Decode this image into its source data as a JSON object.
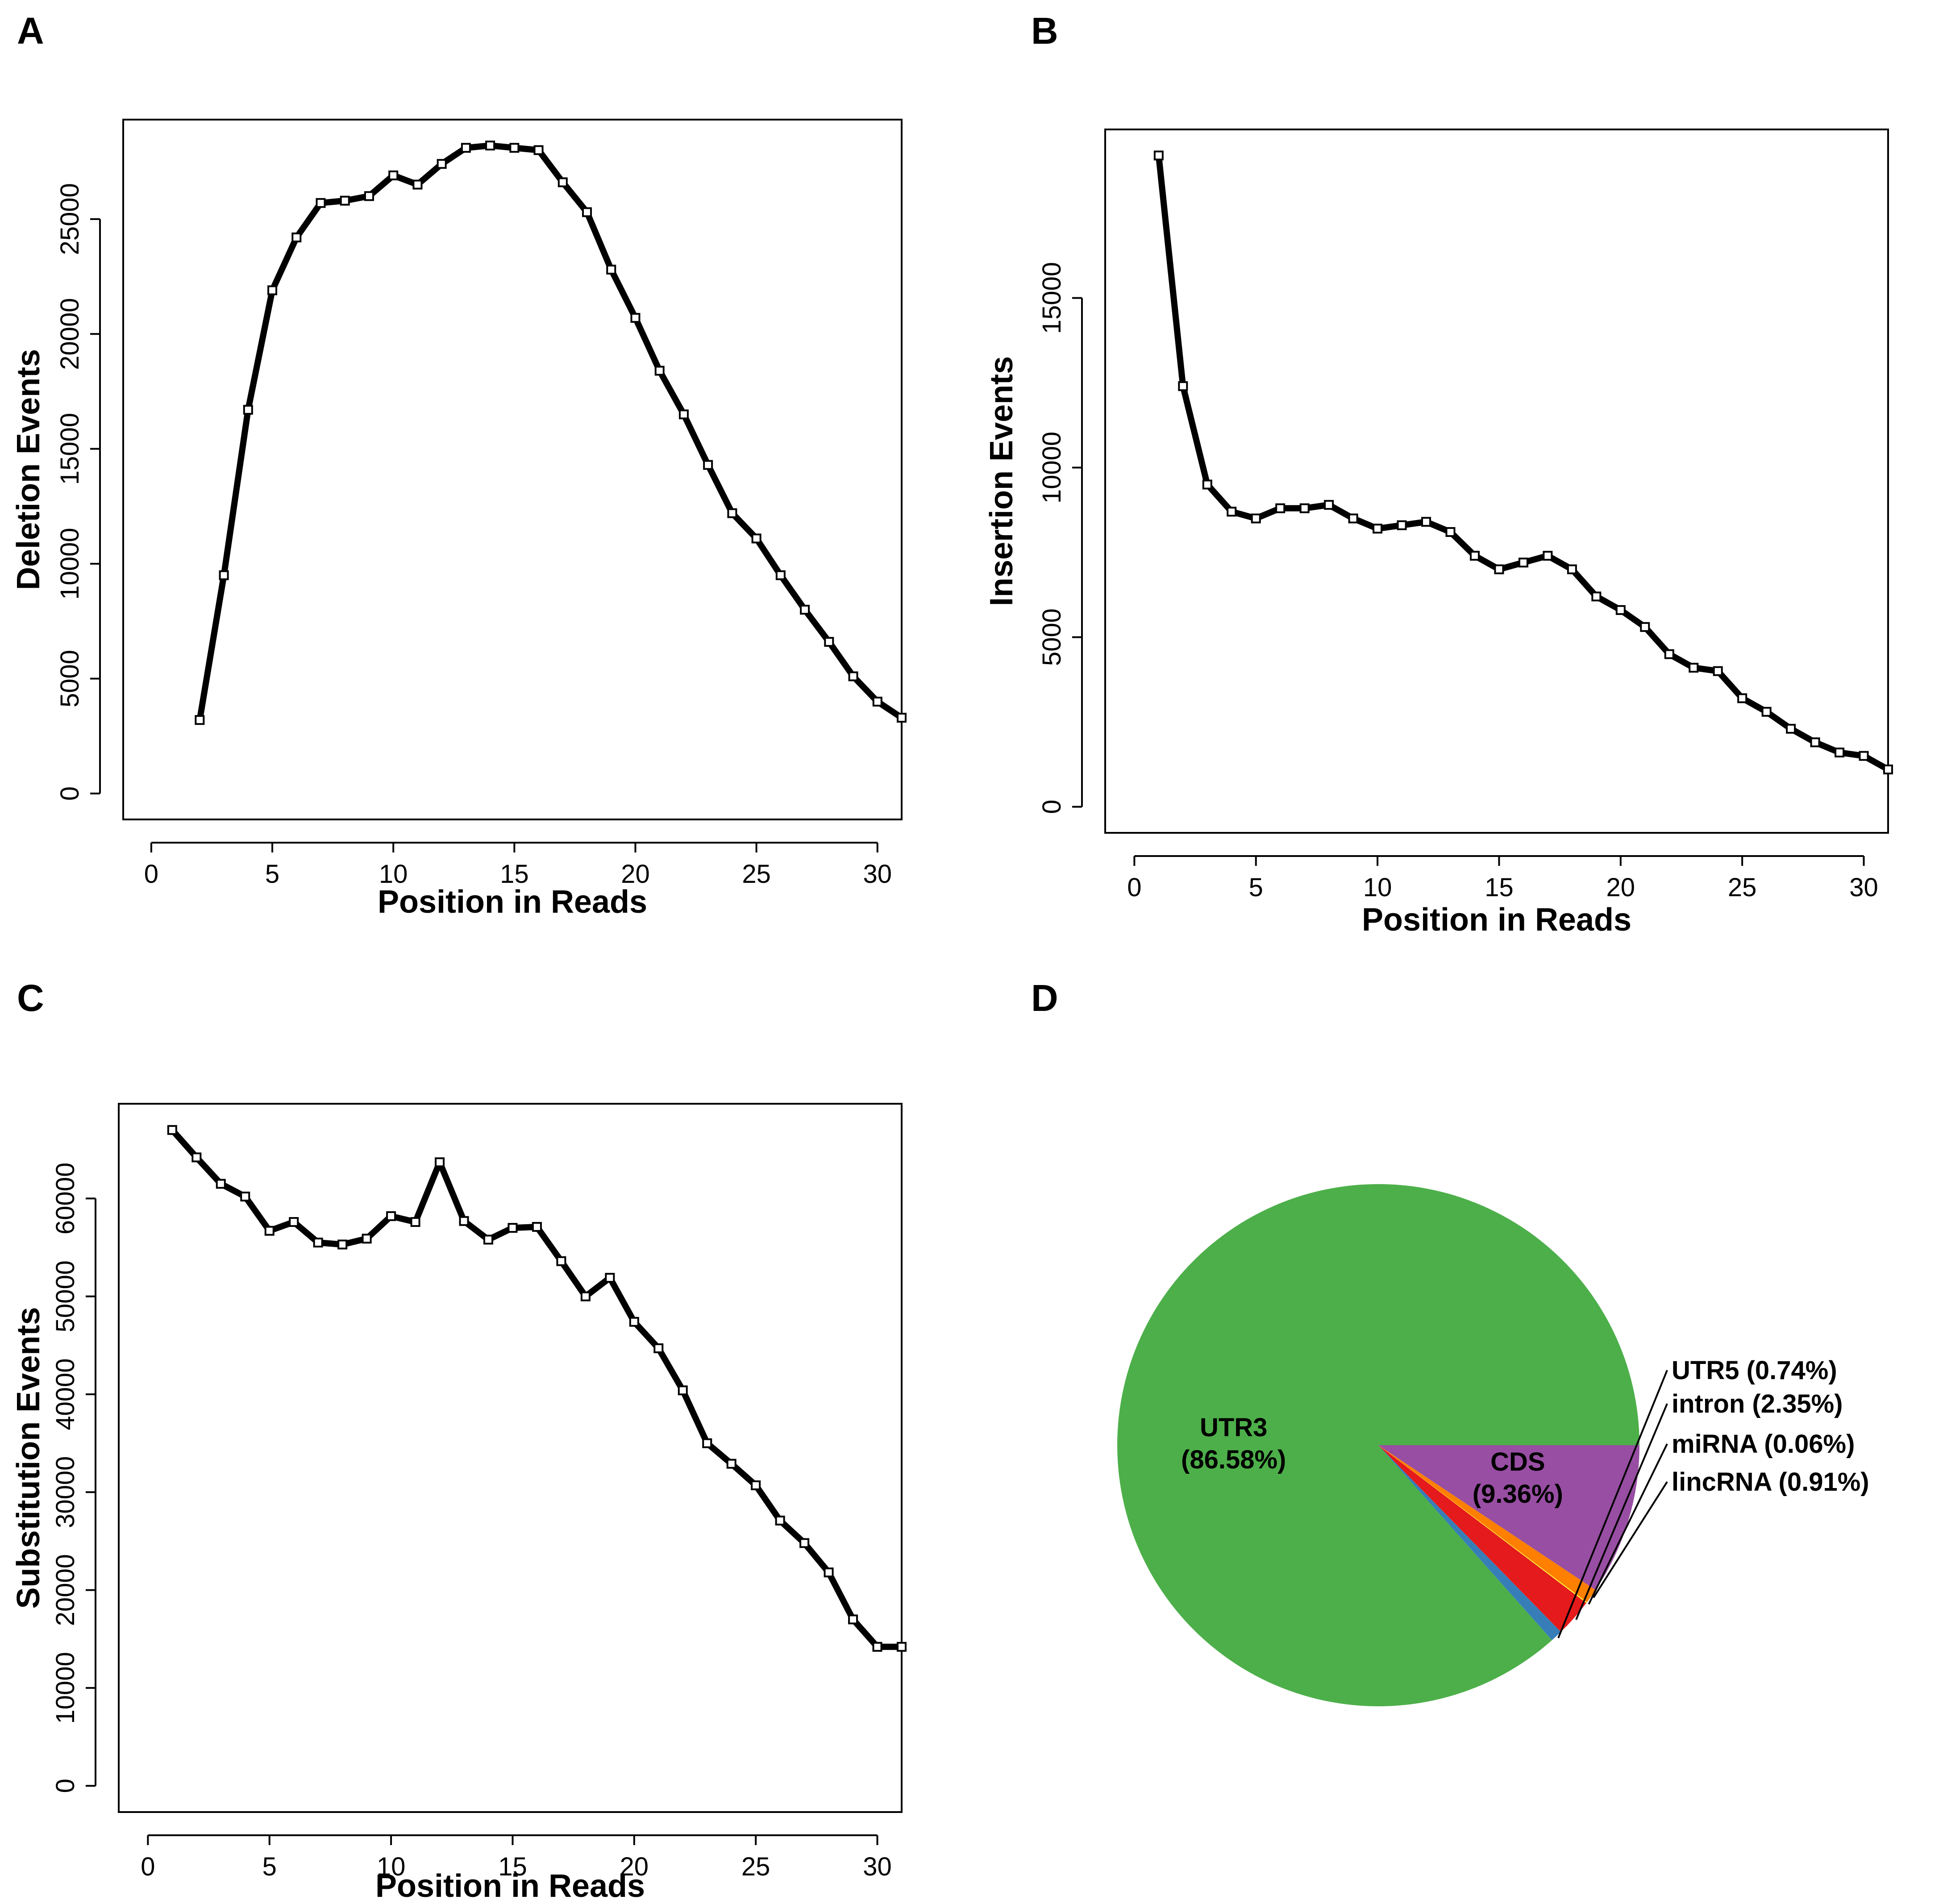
{
  "chart_data": [
    {
      "panel": "A",
      "type": "line",
      "title": "",
      "xlabel": "Position in Reads",
      "ylabel": "Deletion Events",
      "x": [
        2,
        3,
        4,
        5,
        6,
        7,
        8,
        9,
        10,
        11,
        12,
        13,
        14,
        15,
        16,
        17,
        18,
        19,
        20,
        21,
        22,
        23,
        24,
        25,
        26,
        27,
        28,
        29,
        30,
        31
      ],
      "values": [
        3200,
        9500,
        16700,
        21900,
        24200,
        25700,
        25800,
        26000,
        26900,
        26500,
        27400,
        28100,
        28200,
        28100,
        28000,
        26600,
        25300,
        22800,
        20700,
        18400,
        16500,
        14300,
        12200,
        11100,
        9500,
        8000,
        6600,
        5100,
        4000,
        3300
      ],
      "xlim": [
        0,
        31
      ],
      "ylim": [
        0,
        28000
      ],
      "xticks": [
        "0",
        "5",
        "10",
        "15",
        "20",
        "25",
        "30"
      ],
      "yticks": [
        "0",
        "5000",
        "10000",
        "15000",
        "20000",
        "25000"
      ],
      "grid": false
    },
    {
      "panel": "B",
      "type": "line",
      "title": "",
      "xlabel": "Position in Reads",
      "ylabel": "Insertion Events",
      "x": [
        1,
        2,
        3,
        4,
        5,
        6,
        7,
        8,
        9,
        10,
        11,
        12,
        13,
        14,
        15,
        16,
        17,
        18,
        19,
        20,
        21,
        22,
        23,
        24,
        25,
        26,
        27,
        28,
        29,
        30,
        31
      ],
      "values": [
        19200,
        12400,
        9500,
        8700,
        8500,
        8800,
        8800,
        8900,
        8500,
        8200,
        8300,
        8400,
        8100,
        7400,
        7000,
        7200,
        7400,
        7000,
        6200,
        5800,
        5300,
        4500,
        4100,
        4000,
        3200,
        2800,
        2300,
        1900,
        1600,
        1500,
        1100
      ],
      "xlim": [
        0,
        31
      ],
      "ylim": [
        0,
        19200
      ],
      "xticks": [
        "0",
        "5",
        "10",
        "15",
        "20",
        "25",
        "30"
      ],
      "yticks": [
        "0",
        "5000",
        "10000",
        "15000"
      ],
      "grid": false
    },
    {
      "panel": "C",
      "type": "line",
      "title": "",
      "xlabel": "Position in Reads",
      "ylabel": "Substitution Events",
      "x": [
        1,
        2,
        3,
        4,
        5,
        6,
        7,
        8,
        9,
        10,
        11,
        12,
        13,
        14,
        15,
        16,
        17,
        18,
        19,
        20,
        21,
        22,
        23,
        24,
        25,
        26,
        27,
        28,
        29,
        30,
        31
      ],
      "values": [
        67000,
        64200,
        61500,
        60200,
        56700,
        57600,
        55500,
        55300,
        55900,
        58200,
        57600,
        63700,
        57700,
        55800,
        57000,
        57100,
        53600,
        50000,
        51900,
        47400,
        44700,
        40400,
        35000,
        32900,
        30700,
        27100,
        24800,
        21800,
        17000,
        14200,
        14200
      ],
      "xlim": [
        0,
        31
      ],
      "ylim": [
        0,
        67000
      ],
      "xticks": [
        "0",
        "5",
        "10",
        "15",
        "20",
        "25",
        "30"
      ],
      "yticks": [
        "0",
        "10000",
        "20000",
        "30000",
        "40000",
        "50000",
        "60000"
      ],
      "grid": false
    },
    {
      "panel": "D",
      "type": "pie",
      "title": "",
      "slices": [
        {
          "name": "UTR3",
          "percent": "86.58%",
          "value": 86.58,
          "color": "#4DAF4A"
        },
        {
          "name": "UTR5",
          "percent": "0.74%",
          "value": 0.74,
          "color": "#377EB8"
        },
        {
          "name": "intron",
          "percent": "2.35%",
          "value": 2.35,
          "color": "#E41A1C"
        },
        {
          "name": "miRNA",
          "percent": "0.06%",
          "value": 0.06,
          "color": "#FFFF33"
        },
        {
          "name": "lincRNA",
          "percent": "0.91%",
          "value": 0.91,
          "color": "#FF7F00"
        },
        {
          "name": "CDS",
          "percent": "9.36%",
          "value": 9.36,
          "color": "#984EA3"
        }
      ],
      "labels": {
        "UTR3": "UTR3 (86.58%)",
        "UTR5": "UTR5 (0.74%)",
        "intron": "intron (2.35%)",
        "miRNA": "miRNA (0.06%)",
        "lincRNA": "lincRNA (0.91%)",
        "CDS": "CDS (9.36%)"
      }
    }
  ],
  "panels": {
    "a": "A",
    "b": "B",
    "c": "C",
    "d": "D"
  }
}
